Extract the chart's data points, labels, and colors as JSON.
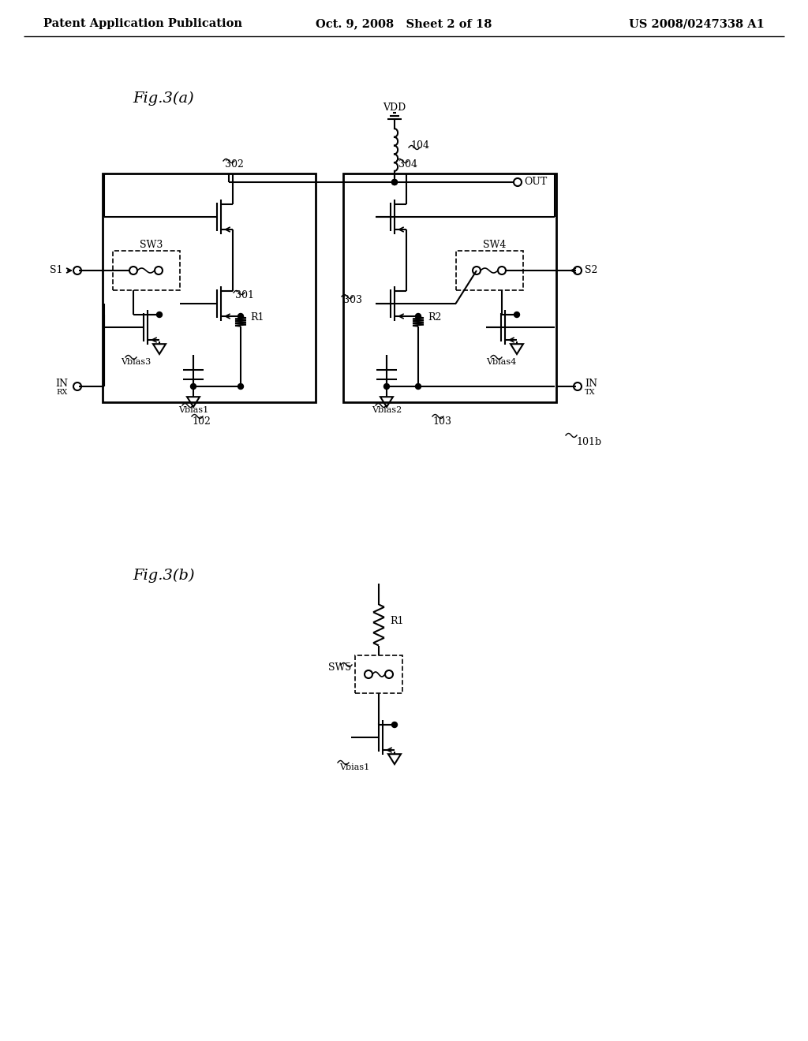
{
  "bg_color": "#ffffff",
  "header_left": "Patent Application Publication",
  "header_mid": "Oct. 9, 2008   Sheet 2 of 18",
  "header_right": "US 2008/0247338 A1",
  "fig3a_label": "Fig.3(a)",
  "fig3b_label": "Fig.3(b)"
}
